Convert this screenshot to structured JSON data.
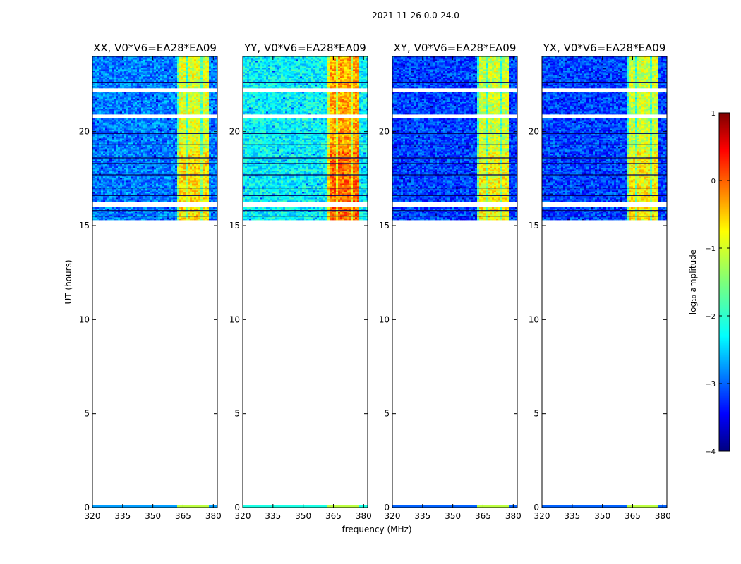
{
  "chart_data": {
    "type": "heatmap",
    "suptitle": "2021-11-26 0.0-24.0",
    "xlabel": "frequency (MHz)",
    "ylabel": "UT (hours)",
    "xlim": [
      320,
      382
    ],
    "ylim": [
      0,
      24
    ],
    "xticks": [
      320,
      335,
      350,
      365,
      380
    ],
    "yticks": [
      0,
      5,
      10,
      15,
      20
    ],
    "panels": [
      {
        "title": "XX, V0*V6=EA28*EA09",
        "show_ylabel": true,
        "show_xlabel": false,
        "band_level": 1.5,
        "bg_level": 2.6
      },
      {
        "title": "YY, V0*V6=EA28*EA09",
        "show_ylabel": false,
        "show_xlabel": true,
        "band_level": 0.9,
        "bg_level": 2.0
      },
      {
        "title": "XY, V0*V6=EA28*EA09",
        "show_ylabel": false,
        "show_xlabel": false,
        "band_level": 1.6,
        "bg_level": 2.9
      },
      {
        "title": "YX, V0*V6=EA28*EA09",
        "show_ylabel": false,
        "show_xlabel": false,
        "band_level": 1.6,
        "bg_level": 2.9
      }
    ],
    "data_time_range_hours": [
      15.3,
      24.0
    ],
    "flagged_time_ranges_hours": [
      [
        22.1,
        22.3
      ],
      [
        20.7,
        20.9
      ],
      [
        16.0,
        16.3
      ],
      [
        0.15,
        15.3
      ]
    ],
    "bright_channel_range_mhz": [
      362,
      378
    ],
    "colorbar": {
      "label": "log₁₀ amplitude",
      "range": [
        -4,
        1
      ],
      "ticks": [
        -4,
        -3,
        -2,
        -1,
        0,
        1
      ],
      "tick_labels": [
        "−4",
        "−3",
        "−2",
        "−1",
        "0",
        "1"
      ],
      "colormap": "jet"
    }
  }
}
